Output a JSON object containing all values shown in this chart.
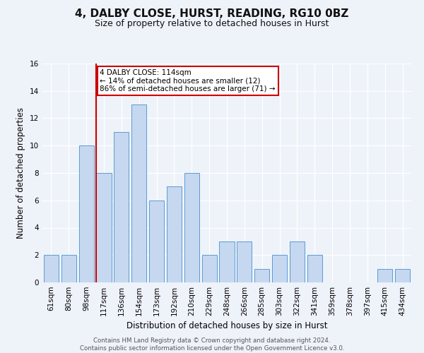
{
  "title": "4, DALBY CLOSE, HURST, READING, RG10 0BZ",
  "subtitle": "Size of property relative to detached houses in Hurst",
  "xlabel": "Distribution of detached houses by size in Hurst",
  "ylabel": "Number of detached properties",
  "categories": [
    "61sqm",
    "80sqm",
    "98sqm",
    "117sqm",
    "136sqm",
    "154sqm",
    "173sqm",
    "192sqm",
    "210sqm",
    "229sqm",
    "248sqm",
    "266sqm",
    "285sqm",
    "303sqm",
    "322sqm",
    "341sqm",
    "359sqm",
    "378sqm",
    "397sqm",
    "415sqm",
    "434sqm"
  ],
  "values": [
    2,
    2,
    10,
    8,
    11,
    13,
    6,
    7,
    8,
    2,
    3,
    3,
    1,
    2,
    3,
    2,
    0,
    0,
    0,
    1,
    1
  ],
  "bar_color": "#c5d8f0",
  "bar_edge_color": "#5b9bd5",
  "property_line_idx": 3,
  "property_line_color": "#cc0000",
  "annotation_text": "4 DALBY CLOSE: 114sqm\n← 14% of detached houses are smaller (12)\n86% of semi-detached houses are larger (71) →",
  "annotation_box_color": "#cc0000",
  "ylim": [
    0,
    16
  ],
  "yticks": [
    0,
    2,
    4,
    6,
    8,
    10,
    12,
    14,
    16
  ],
  "footer": "Contains HM Land Registry data © Crown copyright and database right 2024.\nContains public sector information licensed under the Open Government Licence v3.0.",
  "bg_color": "#eef2f9",
  "grid_color": "#ffffff",
  "title_fontsize": 11,
  "subtitle_fontsize": 9,
  "axis_label_fontsize": 8.5,
  "tick_fontsize": 7.5,
  "footer_fontsize": 6.2,
  "annotation_fontsize": 7.5
}
